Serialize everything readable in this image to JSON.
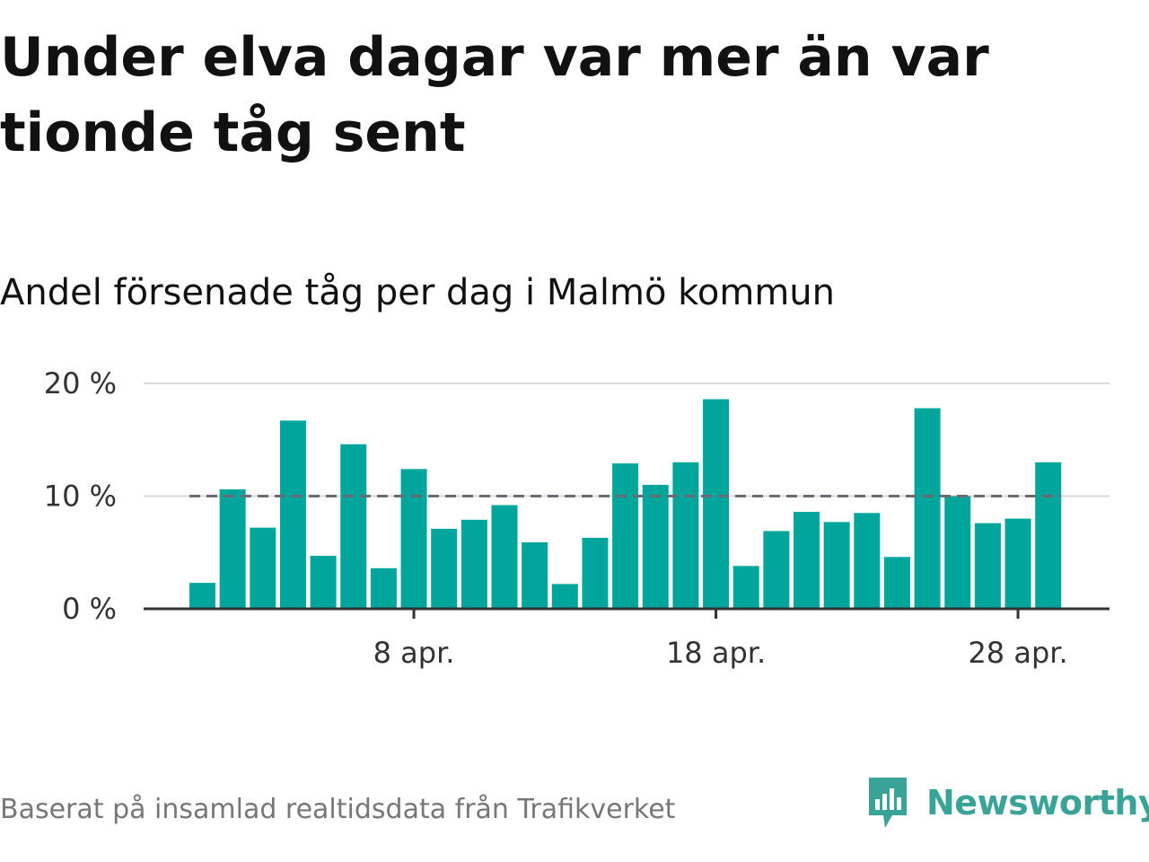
{
  "title": "Under elva dagar var mer än var tionde tåg sent",
  "subtitle": "Andel försenade tåg per dag i Malmö kommun",
  "source": "Baserat på insamlad realtidsdata från Trafikverket",
  "brand": {
    "name": "Newsworthy",
    "icon": "newsworthy-logo-icon",
    "color": "#3aa398"
  },
  "chart_data": {
    "type": "bar",
    "x_start_day": 1,
    "month_label": "apr.",
    "values": [
      2.3,
      10.6,
      7.2,
      16.7,
      4.7,
      14.6,
      3.6,
      12.4,
      7.1,
      7.9,
      9.2,
      5.9,
      2.2,
      6.3,
      12.9,
      11.0,
      13.0,
      18.6,
      3.8,
      6.9,
      8.6,
      7.7,
      8.5,
      4.6,
      17.8,
      10.0,
      7.6,
      8.0,
      13.0
    ],
    "x_tick_labels": [
      "8 apr.",
      "18 apr.",
      "28 apr."
    ],
    "x_ticks": [
      8,
      18,
      28
    ],
    "y_tick_labels": [
      "0 %",
      "10 %",
      "20 %"
    ],
    "y_ticks": [
      0,
      10,
      20
    ],
    "ylim": [
      0,
      20
    ],
    "reference_line": {
      "value": 10,
      "style": "dashed",
      "color": "#6b6b75"
    },
    "bar_color": "#00a69b",
    "grid": true
  }
}
